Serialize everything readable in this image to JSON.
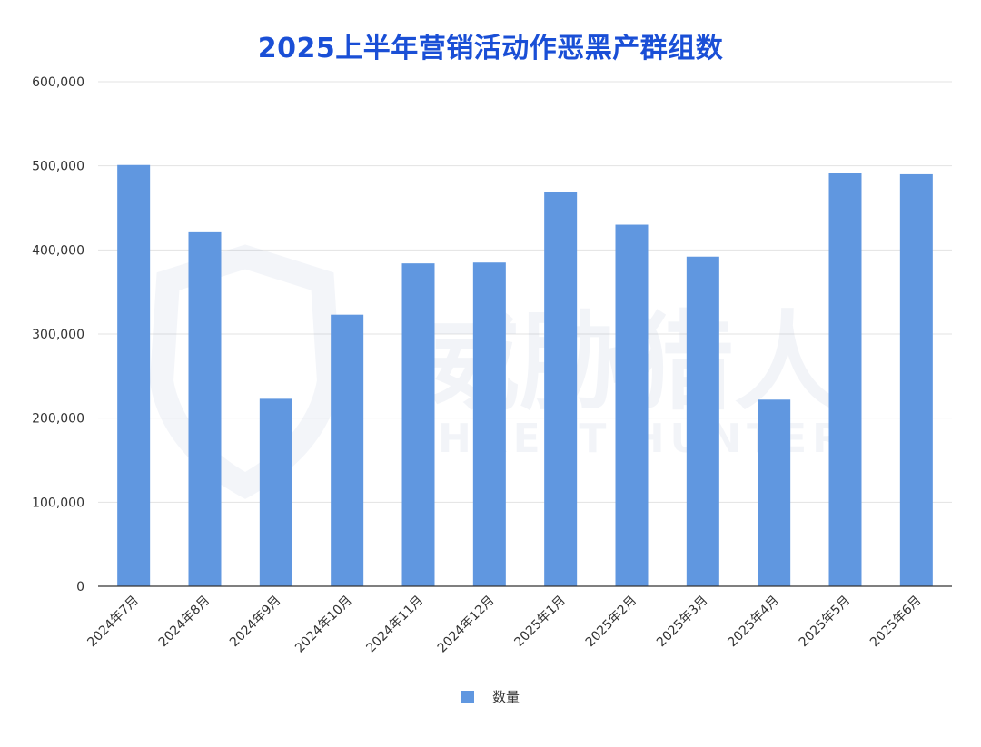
{
  "chart_data": {
    "type": "bar",
    "title": "2025上半年营销活动作恶黑产群组数",
    "categories": [
      "2024年7月",
      "2024年8月",
      "2024年9月",
      "2024年10月",
      "2024年11月",
      "2024年12月",
      "2025年1月",
      "2025年2月",
      "2025年3月",
      "2025年4月",
      "2025年5月",
      "2025年6月"
    ],
    "series": [
      {
        "name": "数量",
        "values": [
          501000,
          421000,
          223000,
          323000,
          384000,
          385000,
          469000,
          430000,
          392000,
          222000,
          491000,
          490000
        ]
      }
    ],
    "ylim": [
      0,
      600000
    ],
    "yticks": [
      0,
      100000,
      200000,
      300000,
      400000,
      500000,
      600000
    ],
    "ytick_labels": [
      "0",
      "100,000",
      "200,000",
      "300,000",
      "400,000",
      "500,000",
      "600,000"
    ],
    "grid": true,
    "legend_position": "bottom",
    "bar_color": "#6097e0"
  },
  "watermark": {
    "logo_text": "威胁猎人",
    "sub_text": "THREAT HUNTER"
  }
}
